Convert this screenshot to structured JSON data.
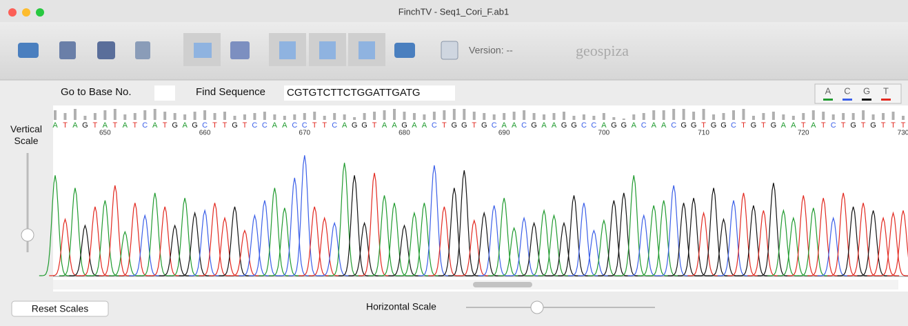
{
  "window": {
    "title": "FinchTV - Seq1_Cori_F.ab1"
  },
  "toolbar": {
    "version": "Version: --",
    "brand": "geospiza"
  },
  "search": {
    "goto_label": "Go to Base No.",
    "find_label": "Find Sequence",
    "find_value": "CGTGTCTTCTGGATTGATG"
  },
  "legend": [
    {
      "name": "A",
      "color": "#1f9a2e"
    },
    {
      "name": "C",
      "color": "#3a5ee8"
    },
    {
      "name": "G",
      "color": "#111111"
    },
    {
      "name": "T",
      "color": "#e2281f"
    }
  ],
  "vertical_scale": "Vertical Scale",
  "chart_data": {
    "type": "chromatogram",
    "bases": [
      "A",
      "T",
      "A",
      "G",
      "T",
      "A",
      "T",
      "A",
      "T",
      "C",
      "A",
      "T",
      "G",
      "A",
      "G",
      "C",
      "T",
      "T",
      "G",
      "T",
      "C",
      "C",
      "A",
      "A",
      "C",
      "C",
      "T",
      "T",
      "C",
      "A",
      "G",
      "G",
      "T",
      "A",
      "A",
      "G",
      "A",
      "A",
      "C",
      "T",
      "G",
      "G",
      "T",
      "G",
      "C",
      "A",
      "A",
      "C",
      "G",
      "A",
      "A",
      "G",
      "G",
      "C",
      "C",
      "A",
      "G",
      "G",
      "A",
      "C",
      "A",
      "A",
      "C",
      "G",
      "G",
      "T",
      "G",
      "G",
      "C",
      "T",
      "G",
      "T",
      "G",
      "A",
      "A",
      "T",
      "A",
      "T",
      "C",
      "T",
      "G",
      "T",
      "G",
      "T",
      "T",
      "T"
    ],
    "xlim": [
      645,
      730
    ],
    "xticks": [
      650,
      660,
      670,
      680,
      690,
      700,
      710,
      720,
      730
    ],
    "quality": [
      14,
      10,
      16,
      6,
      10,
      14,
      16,
      8,
      10,
      14,
      16,
      12,
      10,
      8,
      12,
      14,
      10,
      12,
      6,
      8,
      10,
      12,
      8,
      6,
      8,
      10,
      12,
      6,
      10,
      8,
      4,
      10,
      12,
      14,
      16,
      12,
      10,
      8,
      12,
      14,
      16,
      16,
      12,
      10,
      8,
      10,
      12,
      14,
      10,
      8,
      10,
      12,
      6,
      8,
      6,
      10,
      4,
      2,
      8,
      10,
      14,
      14,
      16,
      16,
      12,
      16,
      8,
      10,
      14,
      16,
      6,
      10,
      12,
      8,
      6,
      10,
      14,
      12,
      8,
      10,
      10,
      14,
      8,
      10,
      12,
      6
    ],
    "peaks": [
      80,
      45,
      70,
      40,
      55,
      60,
      72,
      35,
      58,
      48,
      66,
      55,
      40,
      62,
      50,
      52,
      58,
      46,
      55,
      36,
      48,
      60,
      70,
      54,
      78,
      96,
      55,
      46,
      42,
      90,
      80,
      42,
      82,
      64,
      58,
      40,
      50,
      58,
      88,
      55,
      70,
      84,
      44,
      50,
      56,
      62,
      38,
      46,
      42,
      52,
      48,
      42,
      64,
      58,
      36,
      44,
      60,
      66,
      80,
      48,
      56,
      60,
      72,
      58,
      62,
      50,
      70,
      45,
      60,
      66,
      56,
      52,
      74,
      52,
      46,
      64,
      54,
      62,
      46,
      66,
      55,
      58,
      52,
      46,
      50,
      52
    ],
    "ylim": [
      0,
      100
    ]
  },
  "bottom": {
    "reset": "Reset Scales",
    "hscale": "Horizontal Scale"
  }
}
